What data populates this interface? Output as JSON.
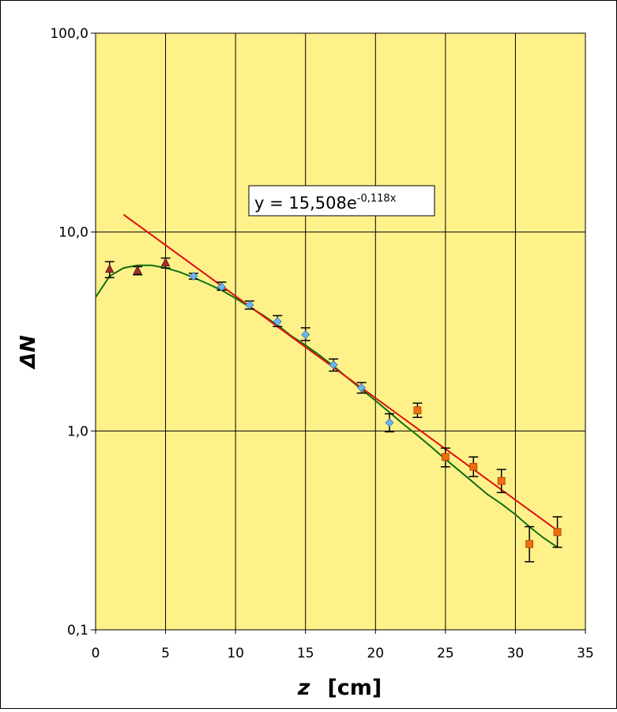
{
  "chart_data": {
    "type": "scatter",
    "xlabel_var": "z",
    "xlabel_unit": "[cm]",
    "ylabel": "ΔN",
    "xlim": [
      0,
      35
    ],
    "ylim": [
      0.1,
      100
    ],
    "yscale": "log",
    "grid": true,
    "background_color": "#FFF18A",
    "x_ticks": [
      0,
      5,
      10,
      15,
      20,
      25,
      30,
      35
    ],
    "x_tick_labels": [
      "0",
      "5",
      "10",
      "15",
      "20",
      "25",
      "30",
      "35"
    ],
    "y_ticks": [
      0.1,
      1,
      10,
      100
    ],
    "y_tick_labels": [
      "0,1",
      "1,0",
      "10,0",
      "100,0"
    ],
    "fit_label": {
      "base": "y = 15,508e",
      "exponent": "-0,118x"
    },
    "series": [
      {
        "marker": "triangle",
        "color": "#A0302A",
        "points": [
          {
            "x": 1,
            "y": 6.5,
            "err_lo": 5.9,
            "err_hi": 7.1
          },
          {
            "x": 3,
            "y": 6.4,
            "err_lo": 6.1,
            "err_hi": 6.7
          },
          {
            "x": 5,
            "y": 7.0,
            "err_lo": 6.6,
            "err_hi": 7.4
          }
        ]
      },
      {
        "marker": "diamond",
        "color": "#6EB4F0",
        "points": [
          {
            "x": 7,
            "y": 6.0,
            "err_lo": 5.8,
            "err_hi": 6.2
          },
          {
            "x": 9,
            "y": 5.3,
            "err_lo": 5.1,
            "err_hi": 5.6
          },
          {
            "x": 11,
            "y": 4.3,
            "err_lo": 4.1,
            "err_hi": 4.5
          },
          {
            "x": 13,
            "y": 3.55,
            "err_lo": 3.35,
            "err_hi": 3.8
          },
          {
            "x": 15,
            "y": 3.05,
            "err_lo": 2.85,
            "err_hi": 3.3
          },
          {
            "x": 17,
            "y": 2.15,
            "err_lo": 2.0,
            "err_hi": 2.3
          },
          {
            "x": 19,
            "y": 1.65,
            "err_lo": 1.55,
            "err_hi": 1.75
          },
          {
            "x": 21,
            "y": 1.1,
            "err_lo": 0.99,
            "err_hi": 1.22
          }
        ]
      },
      {
        "marker": "square",
        "color": "#F06E10",
        "points": [
          {
            "x": 23,
            "y": 1.27,
            "err_lo": 1.17,
            "err_hi": 1.38
          },
          {
            "x": 25,
            "y": 0.74,
            "err_lo": 0.66,
            "err_hi": 0.82
          },
          {
            "x": 27,
            "y": 0.66,
            "err_lo": 0.59,
            "err_hi": 0.74
          },
          {
            "x": 29,
            "y": 0.56,
            "err_lo": 0.49,
            "err_hi": 0.64
          },
          {
            "x": 31,
            "y": 0.27,
            "err_lo": 0.22,
            "err_hi": 0.33
          },
          {
            "x": 33,
            "y": 0.31,
            "err_lo": 0.26,
            "err_hi": 0.37
          }
        ]
      }
    ],
    "exponential_fit": {
      "a": 15.508,
      "b": -0.118,
      "x_range": [
        2,
        33
      ],
      "color": "#E01010"
    },
    "model_curve": {
      "color": "#107010",
      "points": [
        [
          0,
          4.7
        ],
        [
          1,
          6.0
        ],
        [
          2,
          6.6
        ],
        [
          3,
          6.8
        ],
        [
          4,
          6.8
        ],
        [
          5,
          6.6
        ],
        [
          6,
          6.3
        ],
        [
          7,
          5.9
        ],
        [
          8,
          5.5
        ],
        [
          9,
          5.1
        ],
        [
          10,
          4.65
        ],
        [
          11,
          4.2
        ],
        [
          12,
          3.8
        ],
        [
          13,
          3.4
        ],
        [
          14,
          3.0
        ],
        [
          15,
          2.7
        ],
        [
          16,
          2.4
        ],
        [
          17,
          2.12
        ],
        [
          18,
          1.85
        ],
        [
          19,
          1.62
        ],
        [
          20,
          1.42
        ],
        [
          21,
          1.24
        ],
        [
          22,
          1.08
        ],
        [
          23,
          0.95
        ],
        [
          24,
          0.83
        ],
        [
          25,
          0.72
        ],
        [
          26,
          0.63
        ],
        [
          27,
          0.55
        ],
        [
          28,
          0.48
        ],
        [
          29,
          0.43
        ],
        [
          30,
          0.38
        ],
        [
          31,
          0.33
        ],
        [
          32,
          0.29
        ],
        [
          33,
          0.26
        ]
      ]
    }
  }
}
